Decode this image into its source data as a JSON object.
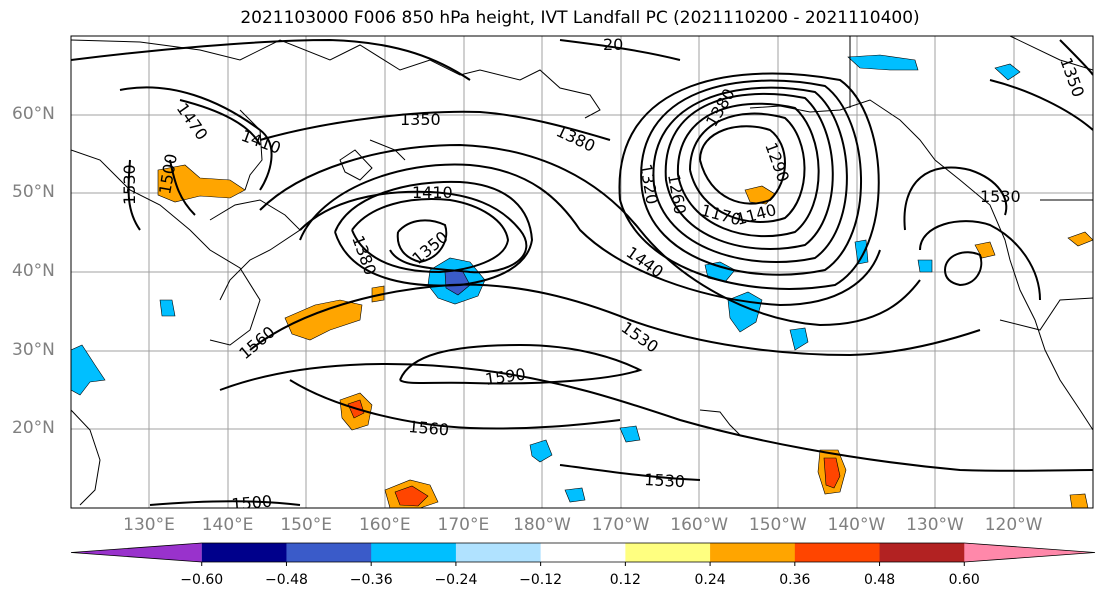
{
  "title": "2021103000 F006 850 hPa height, IVT Landfall PC (2021110200 - 2021110400)",
  "lat_labels": [
    "60°N",
    "50°N",
    "40°N",
    "30°N",
    "20°N"
  ],
  "lon_labels": [
    "130°E",
    "140°E",
    "150°E",
    "160°E",
    "170°E",
    "180°W",
    "170°W",
    "160°W",
    "150°W",
    "140°W",
    "130°W",
    "120°W"
  ],
  "contour_labels": {
    "c1470": "1470",
    "c1410a": "1410",
    "c1350a": "1350",
    "c1380a": "1380",
    "c1500a": "1500",
    "c1530a": "1530",
    "c1410b": "1410",
    "c1380b": "1380",
    "c1350b": "1350",
    "c1440": "1440",
    "c1530b": "1530",
    "c1560a": "1560",
    "c1590": "1590",
    "c1560b": "1560",
    "c1530c": "1530",
    "c1500b": "1500",
    "c1320": "1320",
    "c1260": "1260",
    "c1170": "1170",
    "c1140": "1140",
    "c1290": "1290",
    "c1380c": "1380",
    "c1350c": "1350",
    "c1530d": "1530",
    "c20": "20"
  },
  "colorbar": {
    "colors": [
      "#9932cc",
      "#00008b",
      "#3a5bc9",
      "#00bfff",
      "#b0e2ff",
      "#ffffff",
      "#ffff80",
      "#ffa500",
      "#ff4500",
      "#b22222",
      "#ff88aa"
    ],
    "tick_labels": [
      "-0.60",
      "-0.48",
      "-0.36",
      "-0.24",
      "-0.12",
      "0.12",
      "0.24",
      "0.36",
      "0.48",
      "0.60"
    ]
  },
  "lat_values": [
    60,
    50,
    40,
    30,
    20
  ],
  "lon_values": [
    130,
    140,
    150,
    160,
    170,
    180,
    -170,
    -160,
    -150,
    -140,
    -130,
    -120
  ]
}
